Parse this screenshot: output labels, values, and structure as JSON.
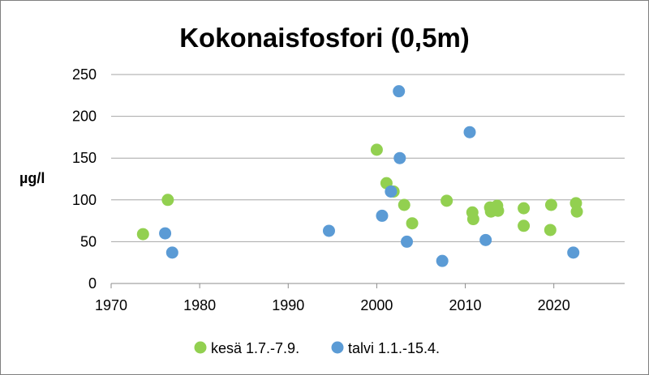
{
  "chart_data": {
    "type": "scatter",
    "title": "Kokonaisfosfori (0,5m)",
    "ylabel": "µg/l",
    "xlabel": "",
    "xlim": [
      1970,
      2028
    ],
    "ylim": [
      0,
      250
    ],
    "x_ticks": [
      1970,
      1980,
      1990,
      2000,
      2010,
      2020
    ],
    "y_ticks": [
      0,
      50,
      100,
      150,
      200,
      250
    ],
    "grid": "horizontal",
    "legend_position": "bottom",
    "series": [
      {
        "name": "kesä 1.7.-7.9.",
        "color": "#92d050",
        "points": [
          [
            1973.6,
            59
          ],
          [
            1976.4,
            100
          ],
          [
            2000.0,
            160
          ],
          [
            2001.1,
            120
          ],
          [
            2001.9,
            110
          ],
          [
            2003.1,
            94
          ],
          [
            2004.0,
            72
          ],
          [
            2007.9,
            99
          ],
          [
            2010.8,
            85
          ],
          [
            2010.9,
            77
          ],
          [
            2012.8,
            91
          ],
          [
            2012.9,
            86
          ],
          [
            2013.6,
            93
          ],
          [
            2013.7,
            87
          ],
          [
            2016.6,
            90
          ],
          [
            2016.6,
            69
          ],
          [
            2019.7,
            94
          ],
          [
            2019.6,
            64
          ],
          [
            2022.5,
            96
          ],
          [
            2022.6,
            86
          ]
        ]
      },
      {
        "name": "talvi 1.1.-15.4.",
        "color": "#5b9bd5",
        "points": [
          [
            1976.1,
            60
          ],
          [
            1976.9,
            37
          ],
          [
            1994.6,
            63
          ],
          [
            2000.6,
            81
          ],
          [
            2001.6,
            110
          ],
          [
            2002.5,
            230
          ],
          [
            2002.6,
            150
          ],
          [
            2003.4,
            50
          ],
          [
            2007.4,
            27
          ],
          [
            2010.5,
            181
          ],
          [
            2012.3,
            52
          ],
          [
            2022.2,
            37
          ]
        ]
      }
    ]
  }
}
